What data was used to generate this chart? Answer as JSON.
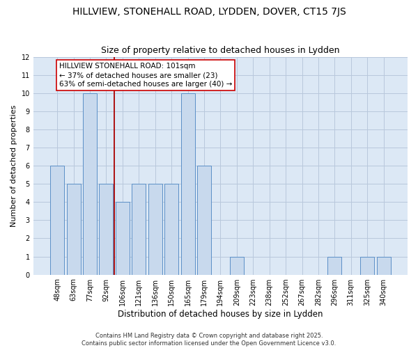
{
  "title": "HILLVIEW, STONEHALL ROAD, LYDDEN, DOVER, CT15 7JS",
  "subtitle": "Size of property relative to detached houses in Lydden",
  "xlabel": "Distribution of detached houses by size in Lydden",
  "ylabel": "Number of detached properties",
  "categories": [
    "48sqm",
    "63sqm",
    "77sqm",
    "92sqm",
    "106sqm",
    "121sqm",
    "136sqm",
    "150sqm",
    "165sqm",
    "179sqm",
    "194sqm",
    "209sqm",
    "223sqm",
    "238sqm",
    "252sqm",
    "267sqm",
    "282sqm",
    "296sqm",
    "311sqm",
    "325sqm",
    "340sqm"
  ],
  "values": [
    6,
    5,
    10,
    5,
    4,
    5,
    5,
    5,
    10,
    6,
    0,
    1,
    0,
    0,
    0,
    0,
    0,
    1,
    0,
    1,
    1
  ],
  "bar_color": "#c8d9ed",
  "bar_edge_color": "#5b8fc7",
  "vline_x": 3.5,
  "vline_color": "#aa0000",
  "annotation_lines": [
    "HILLVIEW STONEHALL ROAD: 101sqm",
    "← 37% of detached houses are smaller (23)",
    "63% of semi-detached houses are larger (40) →"
  ],
  "annotation_box_color": "#cc0000",
  "ylim": [
    0,
    12
  ],
  "yticks": [
    0,
    1,
    2,
    3,
    4,
    5,
    6,
    7,
    8,
    9,
    10,
    11,
    12
  ],
  "grid_color": "#b8c8dc",
  "background_color": "#dce8f5",
  "footer_line1": "Contains HM Land Registry data © Crown copyright and database right 2025.",
  "footer_line2": "Contains public sector information licensed under the Open Government Licence v3.0.",
  "title_fontsize": 10,
  "subtitle_fontsize": 9,
  "xlabel_fontsize": 8.5,
  "ylabel_fontsize": 8,
  "tick_fontsize": 7,
  "annotation_fontsize": 7.5,
  "footer_fontsize": 6
}
